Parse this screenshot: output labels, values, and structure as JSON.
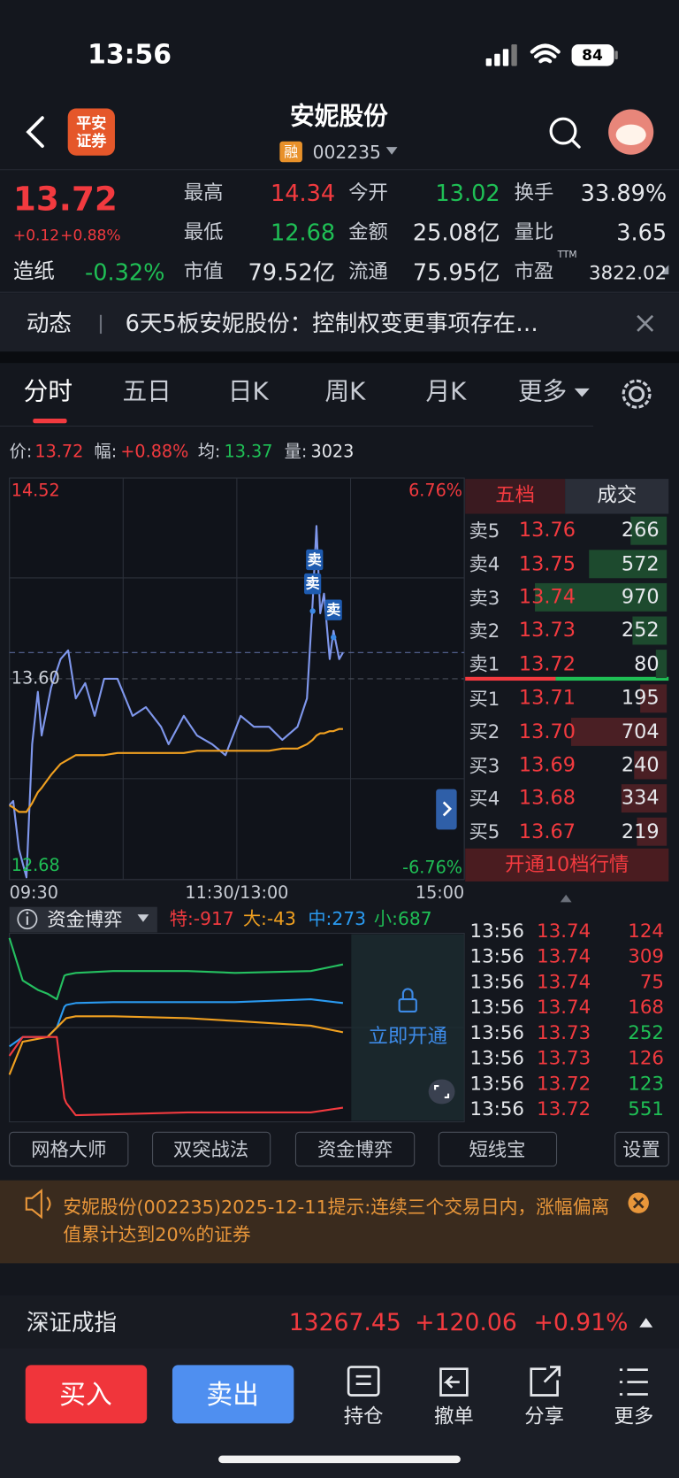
{
  "status_bar": {
    "time": "13:56",
    "battery": "84"
  },
  "header": {
    "logo": [
      "平安",
      "证券"
    ],
    "title": "安妮股份",
    "badge": "融",
    "code": "002235"
  },
  "quote": {
    "price": "13.72",
    "change": "+0.12",
    "change_pct": "+0.88%",
    "sector": {
      "label": "造纸",
      "value": "-0.32%",
      "color": "#1fbf55"
    },
    "fields": [
      [
        {
          "label": "最高",
          "value": "14.34",
          "color": "#f23a3f"
        },
        {
          "label": "今开",
          "value": "13.02",
          "color": "#1fbf55"
        },
        {
          "label": "换手",
          "value": "33.89%",
          "color": "#e6e8ec"
        }
      ],
      [
        {
          "label": "最低",
          "value": "12.68",
          "color": "#1fbf55"
        },
        {
          "label": "金额",
          "value": "25.08亿",
          "color": "#e6e8ec"
        },
        {
          "label": "量比",
          "value": "3.65",
          "color": "#e6e8ec"
        }
      ],
      [
        {
          "label": "市值",
          "value": "79.52亿",
          "color": "#e6e8ec"
        },
        {
          "label": "流通",
          "value": "75.95亿",
          "color": "#e6e8ec"
        },
        {
          "label": "市盈",
          "sup": "TTM",
          "value": "3822.02",
          "color": "#e6e8ec"
        }
      ]
    ]
  },
  "news": {
    "label": "动态",
    "text": "6天5板安妮股份：控制权变更事项存在…"
  },
  "tabs": [
    "分时",
    "五日",
    "日K",
    "周K",
    "月K",
    "更多"
  ],
  "info_line": [
    {
      "label": "价:",
      "value": "13.72",
      "color": "#f23a3f"
    },
    {
      "label": "幅:",
      "value": "+0.88%",
      "color": "#f23a3f"
    },
    {
      "label": "均:",
      "value": "13.37",
      "color": "#1fbf55"
    },
    {
      "label": "量:",
      "value": "3023",
      "color": "#e6e8ec"
    }
  ],
  "chart_data": [
    {
      "type": "line",
      "x": [
        0,
        2,
        5,
        9,
        12,
        15,
        17,
        22,
        27,
        31,
        35,
        40,
        45,
        50,
        57,
        65,
        72,
        80,
        84,
        92,
        99,
        107,
        114,
        122,
        129,
        137,
        144,
        152,
        157,
        160,
        162,
        164,
        166,
        169,
        171,
        174,
        176
      ],
      "series": [
        {
          "color": "#7f97ec",
          "values": [
            13.02,
            13.04,
            12.82,
            12.69,
            13.3,
            13.54,
            13.34,
            13.56,
            13.69,
            13.73,
            13.51,
            13.58,
            13.43,
            13.6,
            13.6,
            13.43,
            13.47,
            13.38,
            13.3,
            13.43,
            13.34,
            13.3,
            13.25,
            13.43,
            13.38,
            13.38,
            13.32,
            13.38,
            13.51,
            13.95,
            14.3,
            13.9,
            13.99,
            13.69,
            13.82,
            13.69,
            13.72
          ]
        },
        {
          "color": "#f0a020",
          "values": [
            13.02,
            13.01,
            12.99,
            12.99,
            13.03,
            13.08,
            13.1,
            13.16,
            13.21,
            13.23,
            13.25,
            13.25,
            13.25,
            13.25,
            13.26,
            13.26,
            13.26,
            13.26,
            13.26,
            13.26,
            13.27,
            13.27,
            13.27,
            13.27,
            13.27,
            13.27,
            13.28,
            13.28,
            13.3,
            13.32,
            13.34,
            13.35,
            13.35,
            13.36,
            13.36,
            13.37,
            13.37
          ]
        }
      ],
      "xlim": [
        0,
        240
      ],
      "xticks": [
        {
          "value": 0,
          "label": "09:30"
        },
        {
          "value": 120,
          "label": "11:30/13:00"
        },
        {
          "value": 240,
          "label": "15:00"
        }
      ],
      "ylim": [
        12.68,
        14.52
      ],
      "yticks": [
        14.52,
        {
          "value": 13.6,
          "label": "13.60"
        },
        12.68
      ],
      "y2lim": [
        -6.76,
        6.76
      ],
      "y2ticks": [
        {
          "value": 6.76,
          "label": "6.76%"
        },
        {
          "value": -6.76,
          "label": "-6.76%"
        }
      ],
      "markers": [
        {
          "label": "卖",
          "x": 161,
          "y": 14.02
        },
        {
          "label": "卖",
          "x": 160,
          "y": 13.91
        },
        {
          "label": "卖",
          "x": 171,
          "y": 13.79
        }
      ]
    },
    {
      "type": "line",
      "x": [
        0,
        7,
        15,
        20,
        25,
        29,
        30,
        35,
        55,
        94,
        119,
        159,
        176
      ],
      "series": [
        {
          "color": "#25c060",
          "values": [
            97.5,
            75,
            70,
            68,
            65,
            77.5,
            78,
            79,
            80,
            80,
            79,
            80,
            83.5
          ]
        },
        {
          "color": "#2a9af0",
          "values": [
            40,
            45,
            45,
            45,
            50,
            61,
            62,
            63,
            63.5,
            63.5,
            63.5,
            65,
            63
          ]
        },
        {
          "color": "#f0a020",
          "values": [
            25,
            42.5,
            44,
            45,
            50,
            54,
            55,
            56,
            56,
            55,
            53.5,
            51,
            47.5
          ]
        },
        {
          "color": "#f23a3f",
          "values": [
            35,
            45,
            45,
            45,
            45,
            12.5,
            10,
            3.5,
            4,
            5,
            5,
            5,
            7.5
          ]
        }
      ],
      "xlim": [
        0,
        240
      ],
      "ylim": [
        0,
        100
      ]
    }
  ],
  "fund_panel": {
    "title": "资金博弈",
    "stats": [
      "特:-917",
      "大:-43",
      "中:273",
      "小:687"
    ],
    "unlock": "立即开通"
  },
  "order_book": {
    "tabs": [
      "五档",
      "成交"
    ],
    "asks": [
      {
        "label": "卖5",
        "price": "13.76",
        "volume": "266"
      },
      {
        "label": "卖4",
        "price": "13.75",
        "volume": "572"
      },
      {
        "label": "卖3",
        "price": "13.74",
        "volume": "970"
      },
      {
        "label": "卖2",
        "price": "13.73",
        "volume": "252"
      },
      {
        "label": "卖1",
        "price": "13.72",
        "volume": "80"
      }
    ],
    "bids": [
      {
        "label": "买1",
        "price": "13.71",
        "volume": "195"
      },
      {
        "label": "买2",
        "price": "13.70",
        "volume": "704"
      },
      {
        "label": "买3",
        "price": "13.69",
        "volume": "240"
      },
      {
        "label": "买4",
        "price": "13.68",
        "volume": "334"
      },
      {
        "label": "买5",
        "price": "13.67",
        "volume": "219"
      }
    ],
    "upgrade": "开通10档行情"
  },
  "trades": [
    {
      "time": "13:56",
      "price": "13.74",
      "volume": "124",
      "color": "#f23a3f"
    },
    {
      "time": "13:56",
      "price": "13.74",
      "volume": "309",
      "color": "#f23a3f"
    },
    {
      "time": "13:56",
      "price": "13.74",
      "volume": "75",
      "color": "#f23a3f"
    },
    {
      "time": "13:56",
      "price": "13.74",
      "volume": "168",
      "color": "#f23a3f"
    },
    {
      "time": "13:56",
      "price": "13.73",
      "volume": "252",
      "color": "#1fbf55"
    },
    {
      "time": "13:56",
      "price": "13.73",
      "volume": "126",
      "color": "#f23a3f"
    },
    {
      "time": "13:56",
      "price": "13.72",
      "volume": "123",
      "color": "#1fbf55"
    },
    {
      "time": "13:56",
      "price": "13.72",
      "volume": "551",
      "color": "#1fbf55"
    }
  ],
  "tools": [
    "网格大师",
    "双突战法",
    "资金博弈",
    "短线宝",
    "设置"
  ],
  "notice": "安妮股份(002235)2025-12-11提示:连续三个交易日内，涨幅偏离值累计达到20%的证券",
  "index": {
    "name": "深证成指",
    "value": "13267.45",
    "change": "+120.06",
    "change_pct": "+0.91%"
  },
  "bottom_bar": {
    "buy": "买入",
    "sell": "卖出",
    "actions": [
      "持仓",
      "撤单",
      "分享",
      "更多"
    ]
  }
}
